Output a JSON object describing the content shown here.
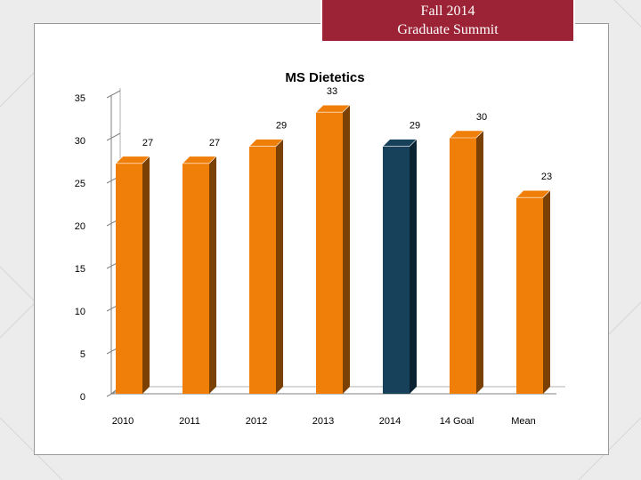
{
  "slide": {
    "banner_line1": "Fall 2014",
    "banner_line2": "Graduate Summit"
  },
  "colors": {
    "bar": "#f07f09",
    "bar_side": "#7a4004",
    "highlight": "#17405a",
    "highlight_side": "#0b2233",
    "banner": "#9b2335"
  },
  "chart_data": {
    "type": "bar",
    "title": "MS Dietetics",
    "categories": [
      "2010",
      "2011",
      "2012",
      "2013",
      "2014",
      "14 Goal",
      "Mean"
    ],
    "values": [
      27,
      27,
      29,
      33,
      29,
      30,
      23
    ],
    "highlight_category": "2014",
    "ylim": [
      0,
      35
    ],
    "yticks": [
      0,
      5,
      10,
      15,
      20,
      25,
      30,
      35
    ],
    "grid": false,
    "legend": "none",
    "style": "3d-column"
  }
}
